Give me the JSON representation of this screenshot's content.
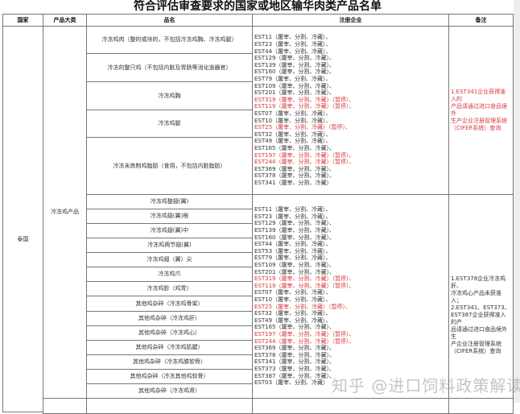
{
  "title": "符合评估审查要求的国家或地区输华肉类产品名单",
  "headers": {
    "country": "国家",
    "category": "产品大类",
    "product": "品名",
    "enterprises": "注册企业",
    "remarks": "备注"
  },
  "country": "泰国",
  "category": "冷冻鸡产品",
  "colors": {
    "suspended": "#d9363e",
    "border": "#777777"
  },
  "group1": {
    "products": [
      "冷冻鸡肉（整的或块的，不包括冷冻鸡胸、冷冻鸡腿）",
      "冷冻的整只鸡（不包括内脏及胃肠等消化道器官）",
      "冷冻鸡胸",
      "冷冻鸡腿",
      "冷冻未炼制鸡脂肪（食用，不包括内脏脂肪）"
    ],
    "enterprises": [
      {
        "text": "EST11（屠宰、分割、冷藏）、",
        "suspended": false
      },
      {
        "text": "EST23（屠宰、分割、冷藏）、",
        "suspended": false
      },
      {
        "text": "EST44（屠宰、分割、冷藏）、",
        "suspended": false
      },
      {
        "text": "EST129（屠宰、分割、冷藏）、",
        "suspended": false
      },
      {
        "text": "EST139（屠宰、分割、冷藏）、",
        "suspended": false
      },
      {
        "text": "EST160（屠宰、分割、冷藏）、",
        "suspended": false
      },
      {
        "text": "EST79（屠宰、分割、冷藏）、",
        "suspended": false
      },
      {
        "text": "EST109（屠宰、分割、冷藏）、",
        "suspended": false
      },
      {
        "text": "EST201（屠宰、分割、冷藏）、",
        "suspended": false
      },
      {
        "text": "EST319（屠宰、分割、冷藏）（暂停）、",
        "suspended": true
      },
      {
        "text": "EST119（屠宰、分割、冷藏）（暂停）、",
        "suspended": true
      },
      {
        "text": "EST07（屠宰、分割、冷藏）、",
        "suspended": false
      },
      {
        "text": "EST10（屠宰、分割、冷藏）、",
        "suspended": false
      },
      {
        "text": "EST25（屠宰、分割、冷藏）（暂停）、",
        "suspended": true
      },
      {
        "text": "EST32（屠宰、分割、冷藏）、",
        "suspended": false
      },
      {
        "text": "EST49（屠宰、分割、冷藏）、",
        "suspended": false
      },
      {
        "text": "EST165（屠宰、分割、冷藏）、",
        "suspended": false
      },
      {
        "text": "EST197（屠宰、分割、冷藏）（暂停）、",
        "suspended": true
      },
      {
        "text": "EST244（屠宰、分割、冷藏）（暂停）、",
        "suspended": true
      },
      {
        "text": "EST369（屠宰、分割、冷藏）、",
        "suspended": false
      },
      {
        "text": "EST378（屠宰、分割、冷藏）、",
        "suspended": false
      },
      {
        "text": "EST341（屠宰、分割、冷藏）",
        "suspended": false
      }
    ],
    "remark": [
      "1.EST341企业获得准入的",
      "产品请通过进口食品境外",
      "生产企业注册管理系统",
      "（CIFER系统）查询"
    ]
  },
  "group2": {
    "products": [
      "冷冻鸡整翅(翼)",
      "冷冻鸡翅(翼)根",
      "冷冻鸡翅(翼)中",
      "冷冻鸡两节翅(翼)",
      "冷冻鸡翅（翼）尖",
      "冷冻鸡爪",
      "冷冻鸡胗（鸡胃）",
      "其他鸡杂碎（冷冻鸡骨架）",
      "其他鸡杂碎（冷冻鸡肝）",
      "其他鸡杂碎（冷冻鸡心）",
      "其他鸡杂碎（冷冻鸡肌腱）",
      "其他鸡杂碎（冷冻鸡膝软骨）",
      "其他鸡杂碎（冷冻其他鸡软骨）",
      "其他鸡杂碎（冷冻鸡肾）"
    ],
    "enterprises": [
      {
        "text": "EST11（屠宰、分割、冷藏）、",
        "suspended": false
      },
      {
        "text": "EST23（屠宰、分割、冷藏）、",
        "suspended": false
      },
      {
        "text": "EST129（屠宰、分割、冷藏）、",
        "suspended": false
      },
      {
        "text": "EST139（屠宰、分割、冷藏）、",
        "suspended": false
      },
      {
        "text": "EST160（屠宰、分割、冷藏）、",
        "suspended": false
      },
      {
        "text": "EST44（屠宰、分割、冷藏）、",
        "suspended": false
      },
      {
        "text": "EST53（屠宰、分割、冷藏）、",
        "suspended": false
      },
      {
        "text": "EST79（屠宰、分割、冷藏）、",
        "suspended": false
      },
      {
        "text": "EST109（屠宰、分割、冷藏）、",
        "suspended": false
      },
      {
        "text": "EST201（屠宰、分割、冷藏）、",
        "suspended": false
      },
      {
        "text": "EST319（屠宰、分割、冷藏）（暂停）、",
        "suspended": true
      },
      {
        "text": "EST119（屠宰、分割、冷藏）（暂停）、",
        "suspended": true
      },
      {
        "text": "EST07（屠宰、分割、冷藏）、",
        "suspended": false
      },
      {
        "text": "EST10（屠宰、分割、冷藏）、",
        "suspended": false
      },
      {
        "text": "EST25（屠宰、分割、冷藏）（暂停）、",
        "suspended": true
      },
      {
        "text": "EST32（屠宰、分割、冷藏）、",
        "suspended": false
      },
      {
        "text": "EST49（屠宰、分割、冷藏）、",
        "suspended": false
      },
      {
        "text": "EST165（屠宰、分割、冷藏）、",
        "suspended": false
      },
      {
        "text": "EST197（屠宰、分割、冷藏）（暂停）、",
        "suspended": true
      },
      {
        "text": "EST244（屠宰、分割、冷藏）（暂停）、",
        "suspended": true
      },
      {
        "text": "EST369（屠宰、分割、冷藏）、",
        "suspended": false
      },
      {
        "text": "EST378（屠宰、分割、冷藏）、",
        "suspended": false
      },
      {
        "text": "EST341（屠宰、分割、冷藏）、",
        "suspended": false
      },
      {
        "text": "EST373（屠宰、分割、冷藏）、",
        "suspended": false
      },
      {
        "text": "EST387（屠宰、分割、冷藏）、",
        "suspended": false
      },
      {
        "text": "EST03（屠宰、分割、冷藏）",
        "suspended": false
      }
    ],
    "remark": [
      "1.EST378企业冷冻鸡肝、",
      "冷冻鸡心产品未获准入；",
      "2.EST341、EST373、",
      "EST387企业获得准入的产",
      "品请通过进口食品境外生",
      "产企业注册管理系统",
      "（CIFER系统）查询"
    ]
  },
  "watermark": "知乎 @进口饲料政策解读"
}
